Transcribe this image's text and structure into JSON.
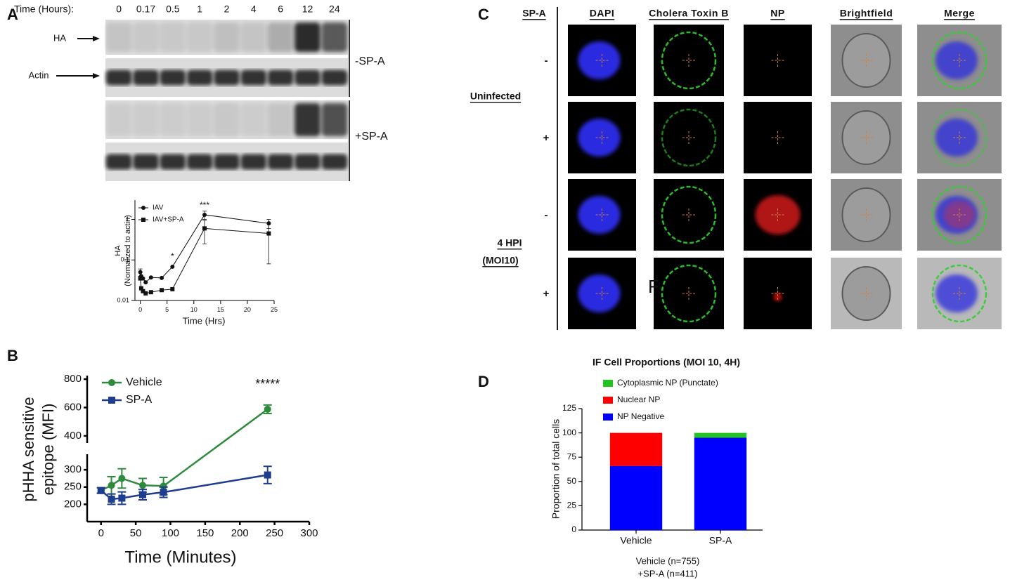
{
  "panel_labels": [
    "A",
    "B",
    "C",
    "D"
  ],
  "blot": {
    "time_label": "Time (Hours):",
    "times": [
      "0",
      "0.17",
      "0.5",
      "1",
      "2",
      "4",
      "6",
      "12",
      "24"
    ],
    "band_labels": [
      "HA",
      "Actin"
    ],
    "conditions": [
      "-SP-A",
      "+SP-A"
    ]
  },
  "microscopy": {
    "condition_header": "SP-A",
    "columns": [
      "DAPI",
      "Cholera Toxin B",
      "NP",
      "Brightfield",
      "Merge"
    ],
    "signs": [
      "-",
      "+",
      "-",
      "+"
    ],
    "groups": [
      "Uninfected",
      "4 HPI",
      "(MOI10)"
    ],
    "stray_text": "F"
  },
  "chart_data": [
    {
      "type": "line",
      "y_label": [
        "HA",
        "(Normalized to actin)"
      ],
      "x_label": "Time (Hrs)",
      "log_y": true,
      "xlim": [
        -1,
        25
      ],
      "ylim": [
        0.01,
        3
      ],
      "xticks": [
        0,
        5,
        10,
        15,
        20,
        25
      ],
      "yticks": [
        0.01,
        0.1,
        1
      ],
      "legend": "upper left",
      "x": [
        0,
        0.17,
        0.5,
        1,
        2,
        4,
        6,
        12,
        24
      ],
      "series": [
        {
          "name": "IAV",
          "color": "#111111",
          "marker": "circle",
          "values": [
            0.05,
            0.04,
            0.035,
            0.028,
            0.037,
            0.036,
            0.068,
            1.3,
            0.8
          ],
          "errors": [
            0.01,
            null,
            null,
            null,
            null,
            null,
            null,
            0.3,
            0.2
          ]
        },
        {
          "name": "IAV+SP-A",
          "color": "#111111",
          "marker": "square",
          "values": [
            0.035,
            0.02,
            0.017,
            0.015,
            0.016,
            0.018,
            0.019,
            0.6,
            0.45
          ],
          "errors": [
            null,
            null,
            null,
            null,
            null,
            null,
            null,
            0.35,
            0.37
          ]
        }
      ],
      "annotations": [
        {
          "text": "*",
          "x": 6,
          "y": 0.12
        },
        {
          "text": "***",
          "x": 12,
          "y": 2.2
        }
      ]
    },
    {
      "type": "line",
      "y_label": [
        "pHHA sensitive",
        "epitope (MFI)"
      ],
      "x_label": "Time (Minutes)",
      "xlim": [
        -20,
        300
      ],
      "ylim": [
        150,
        825
      ],
      "y_break": [
        345,
        350
      ],
      "xticks": [
        0,
        50,
        100,
        150,
        200,
        250,
        300
      ],
      "yticks": [
        200,
        250,
        300,
        400,
        600,
        800
      ],
      "legend": "upper left",
      "x": [
        0,
        15,
        30,
        60,
        90,
        240
      ],
      "series": [
        {
          "name": "Vehicle",
          "color": "#2e8b3e",
          "marker": "circle",
          "values": [
            240,
            255,
            275,
            255,
            253,
            588
          ],
          "errors": [
            8,
            25,
            28,
            20,
            25,
            30
          ]
        },
        {
          "name": "SP-A",
          "color": "#1f3d8f",
          "marker": "square",
          "values": [
            240,
            215,
            218,
            228,
            235,
            285
          ],
          "errors": [
            8,
            15,
            18,
            15,
            15,
            25
          ]
        }
      ],
      "annotations": [
        {
          "text": "*****",
          "x": 240,
          "y": 760
        }
      ]
    },
    {
      "type": "bar",
      "stacked": true,
      "title": "IF Cell Proportions (MOI 10, 4H)",
      "y_label": [
        "Proportion of total cells"
      ],
      "categories": [
        "Vehicle",
        "SP-A"
      ],
      "ylim": [
        0,
        125
      ],
      "yticks": [
        0,
        25,
        50,
        75,
        100,
        125
      ],
      "legend": "upper left",
      "series": [
        {
          "name": "NP Negative",
          "color": "#0000ff",
          "values": [
            66,
            95
          ]
        },
        {
          "name": "Nuclear NP",
          "color": "#ff0000",
          "values": [
            34,
            0
          ]
        },
        {
          "name": "Cytoplasmic NP (Punctate)",
          "color": "#22c322",
          "values": [
            0,
            5
          ]
        }
      ],
      "footnote": [
        "Vehicle (n=755)",
        "+SP-A (n=411)"
      ]
    }
  ]
}
